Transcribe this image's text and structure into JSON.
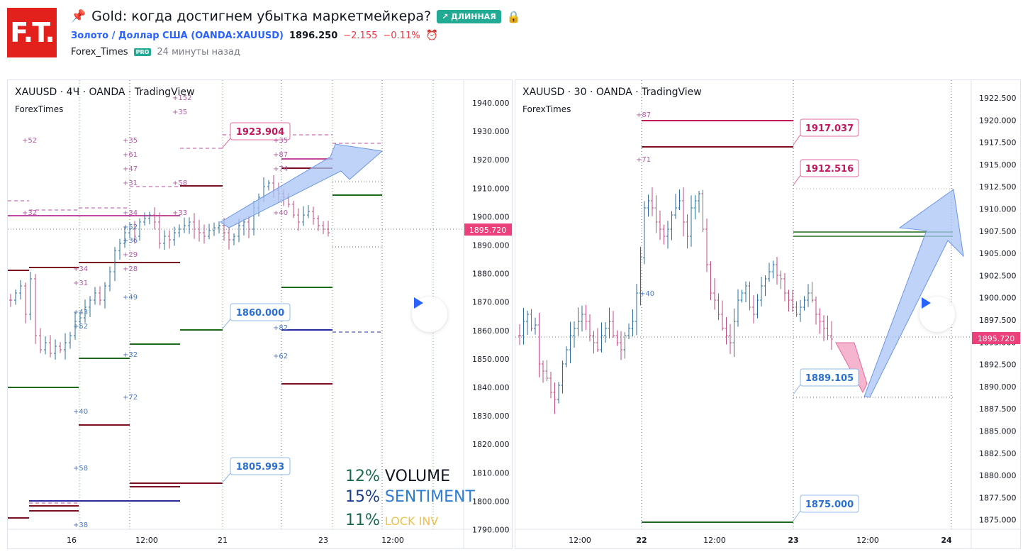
{
  "header": {
    "logo_text": "F.T.",
    "title": "Gold: когда достигнем убытка маркетмейкера?",
    "badge": "↗ ДЛИННАЯ",
    "symbol_full": "Золото / Доллар США (OANDA:XAUUSD)",
    "price": "1896.250",
    "change": "−2.155",
    "change_pct": "−0.11%",
    "author": "Forex_Times",
    "pro_badge": "PRO",
    "published": "24 минуты назад"
  },
  "left_chart": {
    "label": "XAUUSD · 4Ч · OANDA · TradingView",
    "sublabel": "ForexTimes",
    "y_ticks": [
      "1940.000",
      "1930.000",
      "1920.000",
      "1910.000",
      "1900.000",
      "1890.000",
      "1880.000",
      "1870.000",
      "1860.000",
      "1850.000",
      "1840.000",
      "1830.000",
      "1820.000",
      "1810.000",
      "1800.000",
      "1790.000"
    ],
    "x_ticks": [
      "16",
      "12:00",
      "21",
      "23",
      "12:00"
    ],
    "current_price": "1895.720",
    "callouts": [
      "1923.904",
      "1860.000",
      "1805.993"
    ],
    "annotations": [
      "+52",
      "+32",
      "+35",
      "+61",
      "+47",
      "+31",
      "+34",
      "+52",
      "+36",
      "+29",
      "+28",
      "+34",
      "+31",
      "+49",
      "+43",
      "+52",
      "+32",
      "+72",
      "+40",
      "+58",
      "+38",
      "+152",
      "+35",
      "+58",
      "+33",
      "+82",
      "+87",
      "+74",
      "+40",
      "+62",
      "+35"
    ]
  },
  "right_chart": {
    "label": "XAUUSD · 30 · OANDA · TradingView",
    "sublabel": "ForexTimes",
    "y_ticks": [
      "1922.500",
      "1920.000",
      "1917.500",
      "1915.000",
      "1912.500",
      "1910.000",
      "1907.500",
      "1905.000",
      "1902.500",
      "1900.000",
      "1897.500",
      "1895.000",
      "1892.500",
      "1890.000",
      "1887.500",
      "1885.000",
      "1882.500",
      "1880.000",
      "1877.500",
      "1875.000"
    ],
    "x_ticks": [
      "12:00",
      "22",
      "12:00",
      "23",
      "12:00",
      "24"
    ],
    "current_price": "1895.720",
    "callouts": [
      "1917.037",
      "1912.516",
      "1889.105",
      "1875.000"
    ],
    "annotations": [
      "+87",
      "+71",
      "+40"
    ]
  },
  "stats": [
    {
      "pct": "12%",
      "label": "VOLUME"
    },
    {
      "pct": "15%",
      "label": "SENTIMENT"
    },
    {
      "pct": "11%",
      "label": "LOCK INV"
    }
  ]
}
